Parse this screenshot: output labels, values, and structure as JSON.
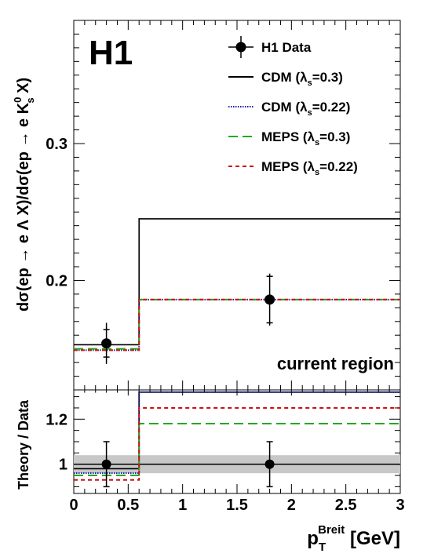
{
  "chart_data": [
    {
      "panel": "main",
      "type": "line",
      "experiment_label": "H1",
      "region_label": "current region",
      "ylabel": {
        "prefix": "dσ(ep → e Λ X)/dσ(ep → e K",
        "sup": "0",
        "sub": "s",
        "suffix": " X)"
      },
      "xlim": [
        0,
        3
      ],
      "ylim": [
        0.12,
        0.39
      ],
      "yticks": [
        0.2,
        0.3
      ],
      "ytick_labels": [
        "0.2",
        "0.3"
      ],
      "bin_edges": [
        0,
        0.6,
        3
      ],
      "series": [
        {
          "name": "H1 Data",
          "kind": "points",
          "color": "#000000",
          "x": [
            0.3,
            1.8
          ],
          "y": [
            0.154,
            0.186
          ],
          "err_stat": [
            0.01,
            0.017
          ],
          "err_tot": [
            0.015,
            0.019
          ]
        },
        {
          "name": "CDM (λs=0.3)",
          "kind": "step",
          "style": "solid",
          "color": "#000000",
          "values": [
            0.153,
            0.245
          ]
        },
        {
          "name": "CDM (λs=0.22)",
          "kind": "step",
          "style": "dotted",
          "color": "#1a1aa6",
          "values": [
            0.149,
            0.186
          ]
        },
        {
          "name": "MEPS (λs=0.3)",
          "kind": "step",
          "style": "dashed",
          "color": "#22aa22",
          "values": [
            0.15,
            0.186
          ]
        },
        {
          "name": "MEPS (λs=0.22)",
          "kind": "step",
          "style": "short-dashed",
          "color": "#cc1111",
          "values": [
            0.149,
            0.186
          ]
        }
      ],
      "legend": [
        {
          "name_main": "H1 Data",
          "name_sub": "",
          "name_end": ""
        },
        {
          "name_main": "CDM (λ",
          "name_sub": "s",
          "name_end": "=0.3)"
        },
        {
          "name_main": "CDM (λ",
          "name_sub": "s",
          "name_end": "=0.22)"
        },
        {
          "name_main": "MEPS (λ",
          "name_sub": "s",
          "name_end": "=0.3)"
        },
        {
          "name_main": "MEPS (λ",
          "name_sub": "s",
          "name_end": "=0.22)"
        }
      ],
      "legend_position": "top-right"
    },
    {
      "panel": "ratio",
      "type": "line",
      "ylabel": "Theory / Data",
      "xlabel": {
        "main": "p",
        "sub": "T",
        "sup": "Breit",
        "suffix": " [GeV]"
      },
      "xlim": [
        0,
        3
      ],
      "ylim": [
        0.87,
        1.33
      ],
      "yticks": [
        1.0,
        1.2
      ],
      "ytick_labels": [
        "1",
        "1.2"
      ],
      "xticks": [
        0,
        0.5,
        1,
        1.5,
        2,
        2.5,
        3
      ],
      "xtick_labels": [
        "0",
        "0.5",
        "1",
        "1.5",
        "2",
        "2.5",
        "3"
      ],
      "bin_edges": [
        0,
        0.6,
        3
      ],
      "band": {
        "low": 0.96,
        "high": 1.04,
        "color": "#c8c8c8"
      },
      "reference_line": 1.0,
      "series": [
        {
          "name": "H1 Data",
          "kind": "points",
          "x": [
            0.3,
            1.8
          ],
          "y": [
            1.0,
            1.0
          ],
          "err": [
            0.1,
            0.1
          ]
        },
        {
          "name": "CDM (λs=0.3)",
          "kind": "step",
          "style": "solid",
          "color": "#000000",
          "values": [
            0.98,
            1.32
          ]
        },
        {
          "name": "CDM (λs=0.22)",
          "kind": "step",
          "style": "dotted",
          "color": "#1a1aa6",
          "values": [
            0.96,
            1.32
          ]
        },
        {
          "name": "MEPS (λs=0.3)",
          "kind": "step",
          "style": "dashed",
          "color": "#22aa22",
          "values": [
            0.95,
            1.18
          ]
        },
        {
          "name": "MEPS (λs=0.22)",
          "kind": "step",
          "style": "short-dashed",
          "color": "#cc1111",
          "values": [
            0.93,
            1.25
          ]
        }
      ]
    }
  ]
}
